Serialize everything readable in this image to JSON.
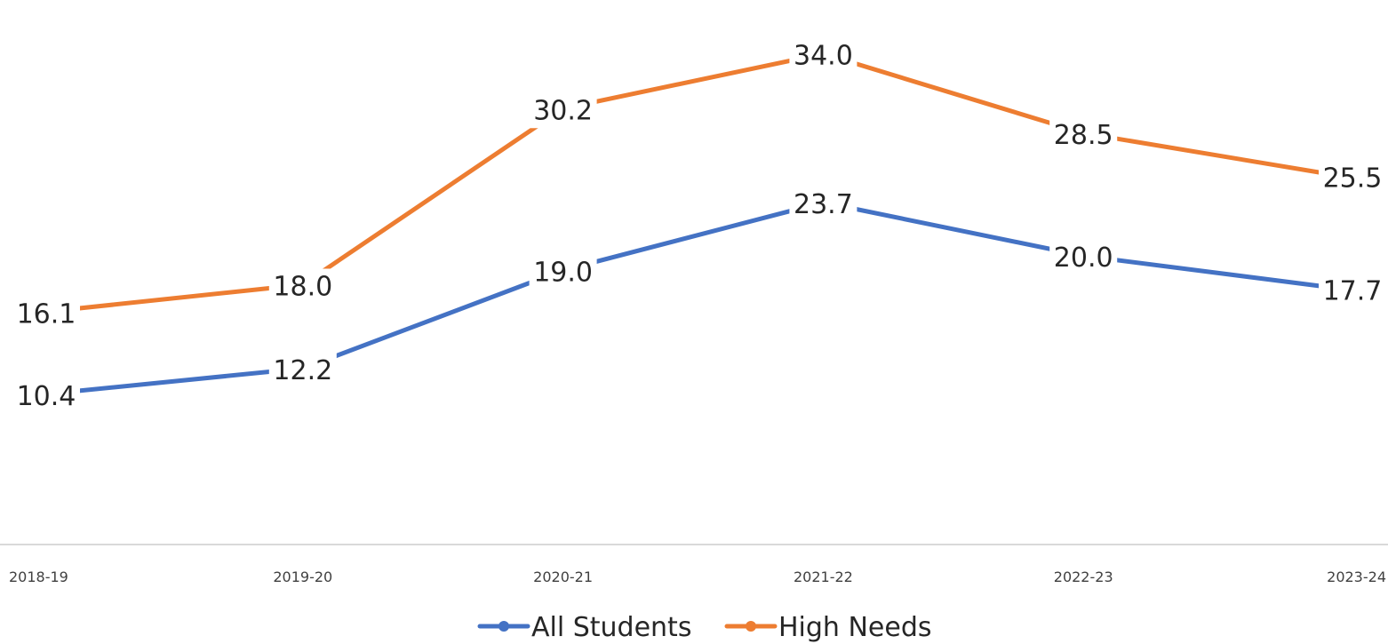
{
  "chart_data": {
    "type": "line",
    "title": "",
    "xlabel": "",
    "ylabel": "",
    "categories": [
      "2018-19",
      "2019-20",
      "2020-21",
      "2021-22",
      "2022-23",
      "2023-24"
    ],
    "ylim": [
      0,
      35
    ],
    "grid": false,
    "legend_position": "bottom",
    "data_labels": true,
    "series": [
      {
        "name": "All Students",
        "color": "#4472C4",
        "values": [
          10.4,
          12.2,
          19.0,
          23.7,
          20.0,
          17.7
        ],
        "labels": [
          "10.4",
          "12.2",
          "19.0",
          "23.7",
          "20.0",
          "17.7"
        ]
      },
      {
        "name": "High Needs",
        "color": "#ED7D31",
        "values": [
          16.1,
          18.0,
          30.2,
          34.0,
          28.5,
          25.5
        ],
        "labels": [
          "16.1",
          "18.0",
          "30.2",
          "34.0",
          "28.5",
          "25.5"
        ]
      }
    ]
  }
}
